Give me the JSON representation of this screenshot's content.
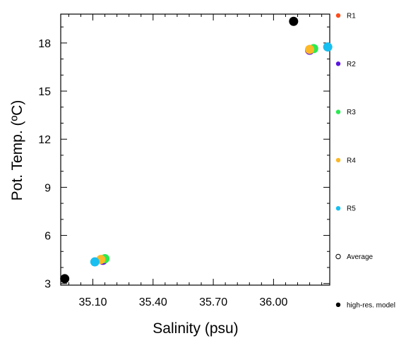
{
  "chart_data": {
    "type": "scatter",
    "title": "",
    "xlabel": "Salinity (psu)",
    "ylabel": "Pot. Temp. (ºC)",
    "xlim": [
      34.94,
      36.28
    ],
    "ylim": [
      2.9,
      19.8
    ],
    "x_ticks": [
      35.1,
      35.4,
      35.7,
      36.0
    ],
    "x_tick_labels": [
      "35.10",
      "35.40",
      "35.70",
      "36.00"
    ],
    "y_ticks": [
      3,
      6,
      9,
      12,
      15,
      18
    ],
    "y_tick_labels": [
      "3",
      "6",
      "9",
      "12",
      "15",
      "18"
    ],
    "grid": false,
    "legend_position": "right",
    "series": [
      {
        "name": "R1",
        "color": "#ff4c1c",
        "marker": "filled-circle",
        "points": [
          [
            35.15,
            4.45
          ],
          [
            36.18,
            17.55
          ]
        ]
      },
      {
        "name": "R2",
        "color": "#5a16e0",
        "marker": "filled-circle",
        "points": [
          [
            35.15,
            4.45
          ],
          [
            36.18,
            17.55
          ]
        ]
      },
      {
        "name": "R3",
        "color": "#2bea52",
        "marker": "filled-circle",
        "points": [
          [
            35.16,
            4.55
          ],
          [
            36.2,
            17.65
          ]
        ]
      },
      {
        "name": "R4",
        "color": "#fcb827",
        "marker": "filled-circle",
        "points": [
          [
            35.14,
            4.5
          ],
          [
            36.18,
            17.6
          ]
        ]
      },
      {
        "name": "R5",
        "color": "#18bff0",
        "marker": "filled-circle",
        "points": [
          [
            35.11,
            4.35
          ],
          [
            36.27,
            17.75
          ]
        ]
      },
      {
        "name": "Average",
        "color": "#000000",
        "marker": "open-circle",
        "points": []
      },
      {
        "name": "high-res. model",
        "color": "#000000",
        "marker": "filled-circle",
        "points": [
          [
            34.96,
            3.3
          ],
          [
            36.1,
            19.35
          ]
        ]
      }
    ]
  }
}
